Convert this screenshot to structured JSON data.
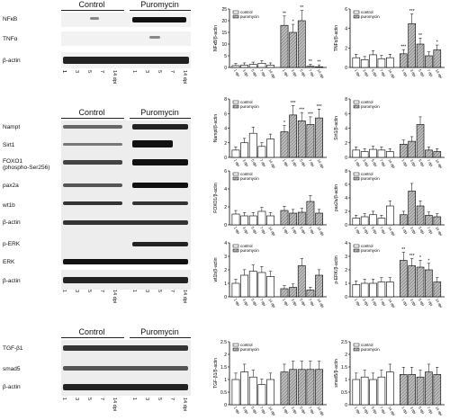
{
  "groups": {
    "control": "Control",
    "puromycin": "Puromycin"
  },
  "days": [
    "1 dpi",
    "3 dpi",
    "5 dpi",
    "7 dpi",
    "14 dpi"
  ],
  "days_short": [
    "1",
    "3",
    "5",
    "7",
    "14 dpi"
  ],
  "western": {
    "panel1": [
      "NFκB",
      "TNFα",
      "β-actin"
    ],
    "panel2": [
      "Nampt",
      "Sirt1",
      "FOXO1\n(phospho-Ser256)",
      "pax2a",
      "wt1b",
      "β-actin",
      "p-ERK",
      "ERK",
      "β-actin"
    ],
    "panel3": [
      "TGF-β1",
      "smad5",
      "β-actin"
    ]
  },
  "colors": {
    "control_bar": "#ffffff",
    "puro_bar": "#b9b9b9",
    "band": "#1a1a1a"
  },
  "chart_data": [
    {
      "type": "bar",
      "ylabel": "NFκB/β-actin",
      "ylim": [
        0,
        25
      ],
      "yticks": [
        0,
        5,
        10,
        15,
        20,
        25
      ],
      "categories": [
        "1 dpi",
        "3 dpi",
        "5 dpi",
        "7 dpi",
        "14 dpi"
      ],
      "series": [
        {
          "name": "control",
          "values": [
            0.8,
            1.0,
            1.3,
            1.8,
            1.0
          ]
        },
        {
          "name": "puromycin",
          "values": [
            18,
            15,
            20,
            0.5,
            0.3
          ]
        }
      ],
      "significance": [
        "**",
        "*",
        "**",
        "**",
        "**"
      ]
    },
    {
      "type": "bar",
      "ylabel": "TNFα/β-actin",
      "ylim": [
        0,
        6
      ],
      "yticks": [
        0,
        2,
        4,
        6
      ],
      "categories": [
        "1 dpi",
        "3 dpi",
        "5 dpi",
        "7 dpi",
        "14 dpi"
      ],
      "series": [
        {
          "name": "control",
          "values": [
            1.0,
            0.8,
            1.3,
            0.9,
            1.0
          ]
        },
        {
          "name": "puromycin",
          "values": [
            1.4,
            4.5,
            2.4,
            1.2,
            1.8
          ]
        }
      ],
      "significance": [
        "***",
        "***",
        "**",
        "",
        "*"
      ]
    },
    {
      "type": "bar",
      "ylabel": "Nampt/β-actin",
      "ylim": [
        0,
        8
      ],
      "yticks": [
        0,
        2,
        4,
        6,
        8
      ],
      "categories": [
        "1 dpi",
        "3 dpi",
        "5 dpi",
        "7 dpi",
        "14 dpi"
      ],
      "series": [
        {
          "name": "control",
          "values": [
            1.0,
            2.0,
            3.3,
            1.5,
            2.5
          ]
        },
        {
          "name": "puromycin",
          "values": [
            3.5,
            5.8,
            5.0,
            4.5,
            5.4
          ]
        }
      ],
      "significance": [
        "*",
        "***",
        "***",
        "***",
        "***"
      ]
    },
    {
      "type": "bar",
      "ylabel": "Sirt1/β-actin",
      "ylim": [
        0,
        8
      ],
      "yticks": [
        0,
        2,
        4,
        6,
        8
      ],
      "categories": [
        "1 dpi",
        "3 dpi",
        "5 dpi",
        "7 dpi",
        "14 dpi"
      ],
      "series": [
        {
          "name": "control",
          "values": [
            1.0,
            0.8,
            1.1,
            1.0,
            0.8
          ]
        },
        {
          "name": "puromycin",
          "values": [
            1.8,
            2.2,
            4.5,
            1.0,
            0.8
          ]
        }
      ],
      "significance": [
        "",
        "",
        "",
        "",
        ""
      ]
    },
    {
      "type": "bar",
      "ylabel": "FOXO1/β-actin",
      "ylim": [
        0,
        6
      ],
      "yticks": [
        0,
        2,
        4,
        6
      ],
      "categories": [
        "1 dpi",
        "3 dpi",
        "5 dpi",
        "7 dpi",
        "14 dpi"
      ],
      "series": [
        {
          "name": "control",
          "values": [
            1.2,
            1.0,
            1.0,
            1.5,
            1.0
          ]
        },
        {
          "name": "puromycin",
          "values": [
            1.6,
            1.3,
            1.4,
            2.6,
            1.3
          ]
        }
      ],
      "significance": [
        "",
        "",
        "",
        "",
        ""
      ]
    },
    {
      "type": "bar",
      "ylabel": "pax2a/β-actin",
      "ylim": [
        0,
        8
      ],
      "yticks": [
        0,
        2,
        4,
        6,
        8
      ],
      "categories": [
        "1 dpi",
        "3 dpi",
        "5 dpi",
        "7 dpi",
        "14 dpi"
      ],
      "series": [
        {
          "name": "control",
          "values": [
            1.0,
            1.2,
            1.5,
            1.0,
            2.8
          ]
        },
        {
          "name": "puromycin",
          "values": [
            1.5,
            5.0,
            2.8,
            1.4,
            1.2
          ]
        }
      ],
      "significance": [
        "",
        "",
        "",
        "",
        ""
      ]
    },
    {
      "type": "bar",
      "ylabel": "wt1b/β-actin",
      "ylim": [
        0,
        4
      ],
      "yticks": [
        0,
        1,
        2,
        3,
        4
      ],
      "categories": [
        "1 dpi",
        "3 dpi",
        "5 dpi",
        "7 dpi",
        "14 dpi"
      ],
      "series": [
        {
          "name": "control",
          "values": [
            1.0,
            1.6,
            1.9,
            1.8,
            1.5
          ]
        },
        {
          "name": "puromycin",
          "values": [
            0.6,
            0.7,
            2.3,
            0.5,
            1.6
          ]
        }
      ],
      "significance": [
        "",
        "",
        "",
        "",
        ""
      ]
    },
    {
      "type": "bar",
      "ylabel": "p-ERK/β-actin",
      "ylim": [
        0,
        4
      ],
      "yticks": [
        0,
        1,
        2,
        3,
        4
      ],
      "categories": [
        "1 dpi",
        "3 dpi",
        "5 dpi",
        "7 dpi",
        "14 dpi"
      ],
      "series": [
        {
          "name": "control",
          "values": [
            0.9,
            1.0,
            1.0,
            1.1,
            1.1
          ]
        },
        {
          "name": "puromycin",
          "values": [
            2.7,
            2.3,
            2.2,
            2.0,
            1.1
          ]
        }
      ],
      "significance": [
        "**",
        "***",
        "*",
        "*",
        ""
      ]
    },
    {
      "type": "bar",
      "ylabel": "TGF-β1/β-actin",
      "ylim": [
        0,
        2.5
      ],
      "yticks": [
        0,
        0.5,
        1.0,
        1.5,
        2.0,
        2.5
      ],
      "categories": [
        "1 dpi",
        "3 dpi",
        "5 dpi",
        "7 dpi",
        "14 dpi"
      ],
      "series": [
        {
          "name": "control",
          "values": [
            1.0,
            1.3,
            1.1,
            0.8,
            1.0
          ]
        },
        {
          "name": "puromycin",
          "values": [
            1.3,
            1.4,
            1.4,
            1.4,
            1.4
          ]
        }
      ],
      "significance": [
        "",
        "",
        "",
        "",
        ""
      ]
    },
    {
      "type": "bar",
      "ylabel": "smad5/β-actin",
      "ylim": [
        0,
        2.5
      ],
      "yticks": [
        0,
        0.5,
        1.0,
        1.5,
        2.0,
        2.5
      ],
      "categories": [
        "1 dpi",
        "3 dpi",
        "5 dpi",
        "7 dpi",
        "14 dpi"
      ],
      "series": [
        {
          "name": "control",
          "values": [
            1.0,
            1.1,
            1.0,
            1.1,
            1.3
          ]
        },
        {
          "name": "puromycin",
          "values": [
            1.2,
            1.2,
            1.1,
            1.3,
            1.2
          ]
        }
      ],
      "significance": [
        "",
        "",
        "",
        "",
        ""
      ]
    }
  ]
}
